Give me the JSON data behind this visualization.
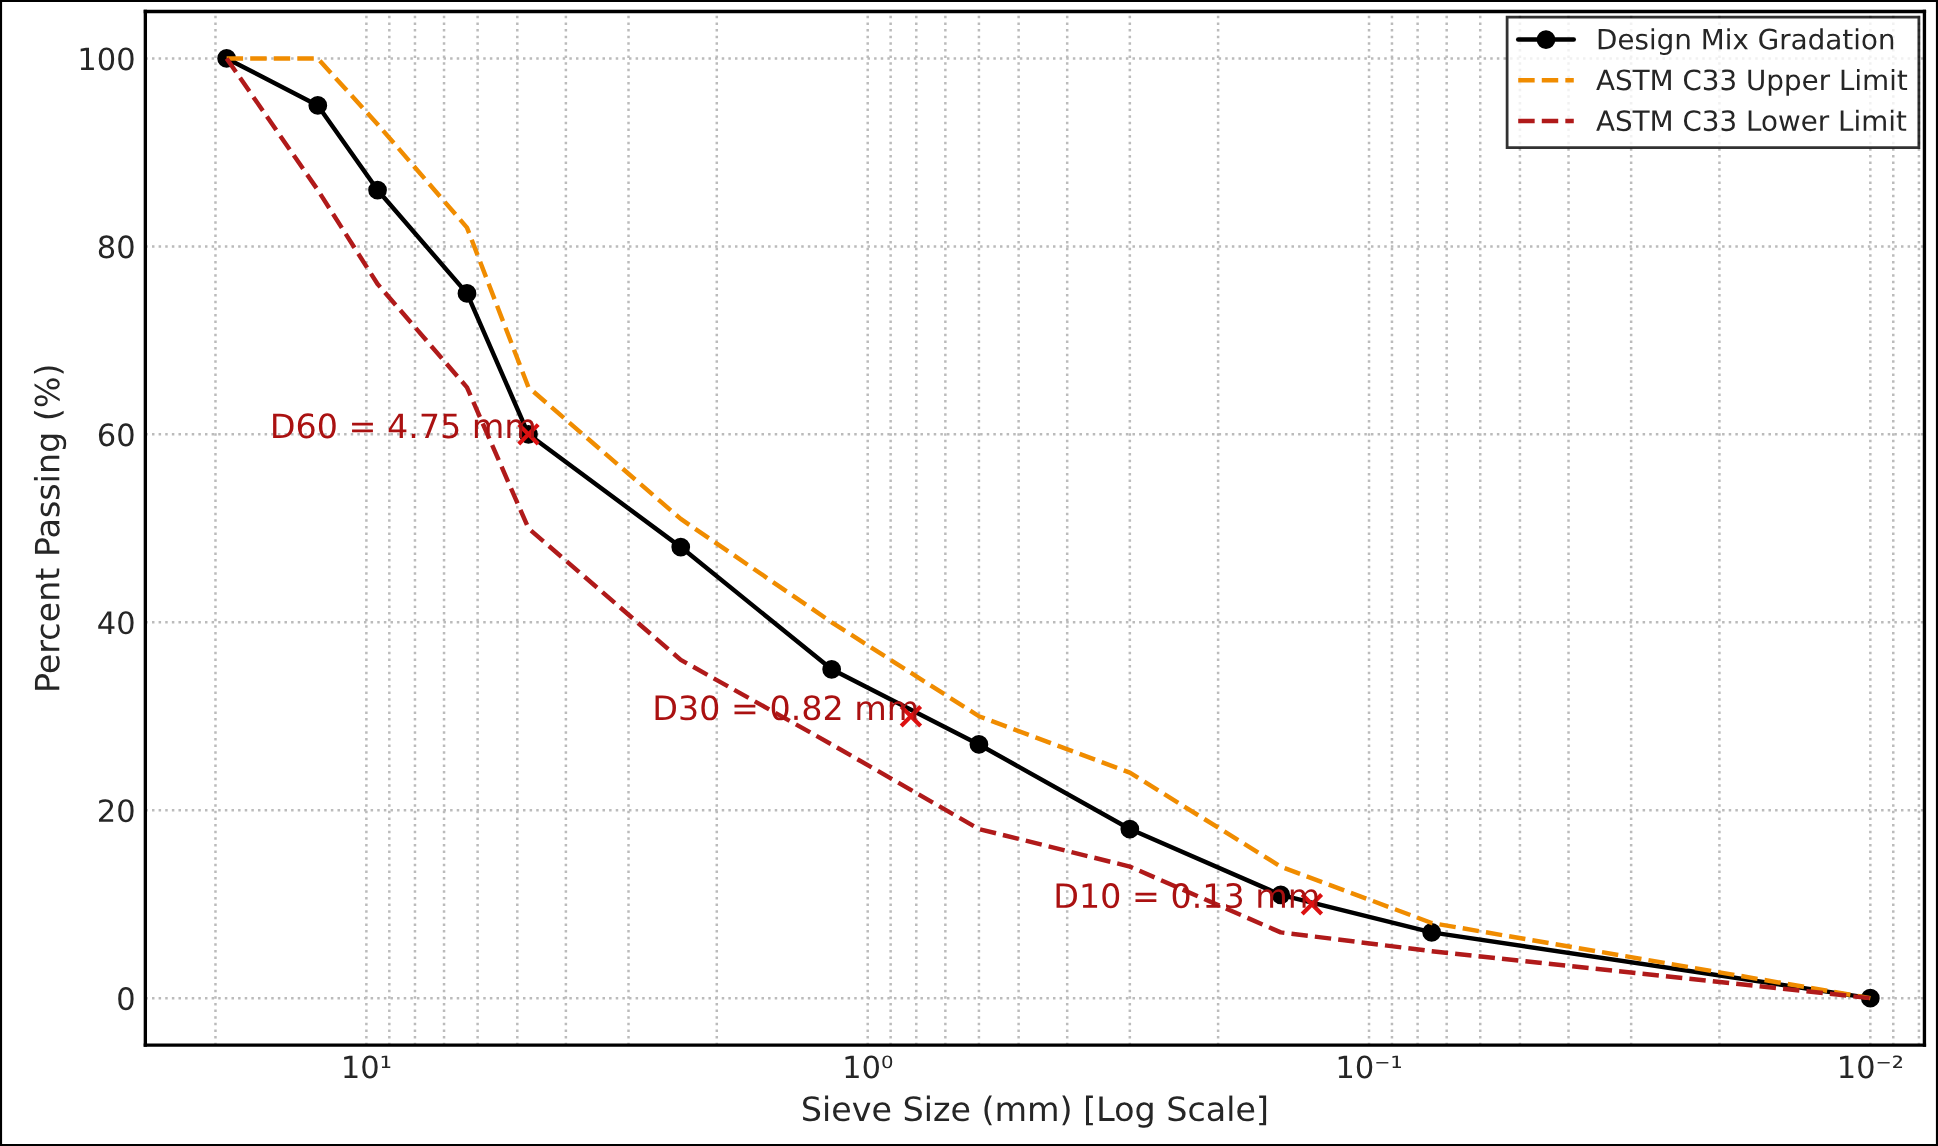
{
  "chart_data": {
    "type": "line",
    "xlabel": "Sieve Size (mm) [Log Scale]",
    "ylabel": "Percent Passing (%)",
    "log": "x",
    "xlim": [
      27.6,
      0.0078
    ],
    "ylim": [
      -5,
      105
    ],
    "xticks": [
      {
        "value": 10,
        "label": "10¹"
      },
      {
        "value": 1,
        "label": "10⁰"
      },
      {
        "value": 0.1,
        "label": "10⁻¹"
      },
      {
        "value": 0.01,
        "label": "10⁻²"
      }
    ],
    "yticks": [
      0,
      20,
      40,
      60,
      80,
      100
    ],
    "grid": true,
    "legend": "top right",
    "series": [
      {
        "name": "Design Mix Gradation",
        "color": "#000000",
        "marker": "circle",
        "line_style": "solid",
        "x": [
          19,
          12.5,
          9.5,
          6.3,
          4.75,
          2.36,
          1.18,
          0.6,
          0.3,
          0.15,
          0.075,
          0.01
        ],
        "values": [
          100,
          95,
          86,
          75,
          60,
          48,
          35,
          27,
          18,
          11,
          7,
          0
        ]
      },
      {
        "name": "ASTM C33 Upper Limit",
        "color": "#f08c00",
        "marker": "none",
        "line_style": "dashed",
        "x": [
          19,
          12.5,
          9.5,
          6.3,
          4.75,
          2.36,
          1.18,
          0.6,
          0.3,
          0.15,
          0.075,
          0.01
        ],
        "values": [
          100,
          100,
          93,
          82,
          65,
          51,
          40,
          30,
          24,
          14,
          8,
          0
        ]
      },
      {
        "name": "ASTM C33 Lower Limit",
        "color": "#b01a1a",
        "marker": "none",
        "line_style": "dashed",
        "x": [
          19,
          12.5,
          9.5,
          6.3,
          4.75,
          2.36,
          1.18,
          0.6,
          0.3,
          0.15,
          0.075,
          0.01
        ],
        "values": [
          100,
          86,
          76,
          65,
          50,
          36,
          27,
          18,
          14,
          7,
          5,
          0
        ]
      }
    ],
    "annotations": [
      {
        "text": "D60 = 4.75 mm",
        "x": 4.75,
        "y": 60
      },
      {
        "text": "D30 = 0.82 mm",
        "x": 0.82,
        "y": 30
      },
      {
        "text": "D10 = 0.13 mm",
        "x": 0.13,
        "y": 10
      }
    ]
  }
}
